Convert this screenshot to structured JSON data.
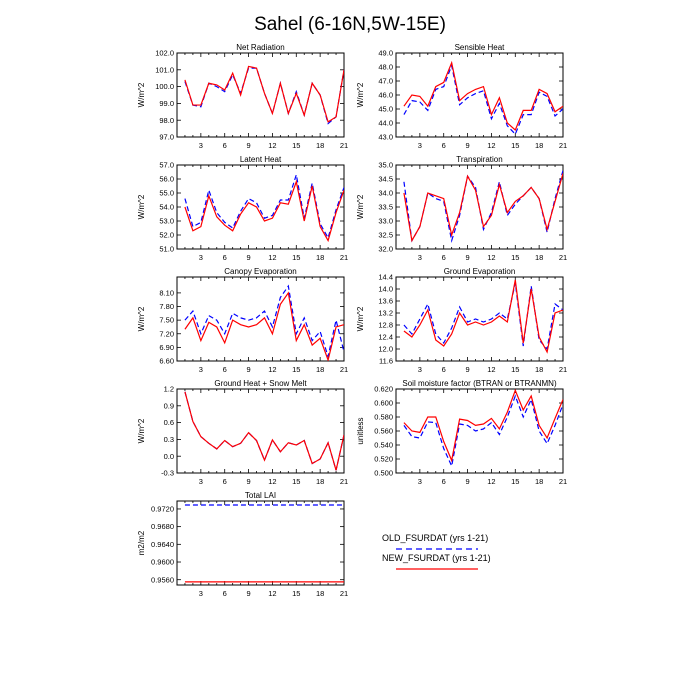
{
  "title": "Sahel (6-16N,5W-15E)",
  "colors": {
    "old": "#0000ff",
    "new": "#ff0000",
    "axis": "#000000"
  },
  "legend": {
    "entries": [
      {
        "label": "OLD_FSURDAT (yrs 1-21)",
        "style": "dashed",
        "color": "#0000ff"
      },
      {
        "label": "NEW_FSURDAT (yrs 1-21)",
        "style": "solid",
        "color": "#ff0000"
      }
    ]
  },
  "chart_data": [
    {
      "type": "line",
      "title": "Net Radiation",
      "ylabel": "W/m^2",
      "xlim": [
        0,
        21
      ],
      "ylim": [
        97.0,
        102.0
      ],
      "xticks": [
        "3",
        "6",
        "9",
        "12",
        "15",
        "18",
        "21"
      ],
      "yticks": [
        "97.0",
        "98.0",
        "99.0",
        "100.0",
        "101.0",
        "102.0"
      ],
      "x": [
        1,
        2,
        3,
        4,
        5,
        6,
        7,
        8,
        9,
        10,
        11,
        12,
        13,
        14,
        15,
        16,
        17,
        18,
        19,
        20,
        21
      ],
      "series": [
        {
          "name": "OLD_FSURDAT (yrs 1-21)",
          "values": [
            100.3,
            98.9,
            98.8,
            100.2,
            100.0,
            99.7,
            100.7,
            99.6,
            101.1,
            101.1,
            99.6,
            98.4,
            100.2,
            98.4,
            99.7,
            98.3,
            100.2,
            99.5,
            97.8,
            98.2,
            101.0
          ]
        },
        {
          "name": "NEW_FSURDAT (yrs 1-21)",
          "values": [
            100.4,
            98.9,
            98.9,
            100.2,
            100.1,
            99.8,
            100.8,
            99.5,
            101.2,
            101.1,
            99.6,
            98.4,
            100.2,
            98.4,
            99.6,
            98.3,
            100.2,
            99.5,
            97.9,
            98.2,
            101.0
          ]
        }
      ]
    },
    {
      "type": "line",
      "title": "Sensible Heat",
      "ylabel": "W/m^2",
      "xlim": [
        0,
        21
      ],
      "ylim": [
        43.0,
        49.0
      ],
      "xticks": [
        "3",
        "6",
        "9",
        "12",
        "15",
        "18",
        "21"
      ],
      "yticks": [
        "43.0",
        "44.0",
        "45.0",
        "46.0",
        "47.0",
        "48.0",
        "49.0"
      ],
      "x": [
        1,
        2,
        3,
        4,
        5,
        6,
        7,
        8,
        9,
        10,
        11,
        12,
        13,
        14,
        15,
        16,
        17,
        18,
        19,
        20,
        21
      ],
      "series": [
        {
          "name": "OLD_FSURDAT (yrs 1-21)",
          "values": [
            44.6,
            45.6,
            45.5,
            44.9,
            46.4,
            46.6,
            48.1,
            45.3,
            45.8,
            46.1,
            46.3,
            44.3,
            45.4,
            43.8,
            43.2,
            44.6,
            44.6,
            46.2,
            45.9,
            44.5,
            45.0
          ]
        },
        {
          "name": "NEW_FSURDAT (yrs 1-21)",
          "values": [
            45.2,
            46.0,
            45.9,
            45.2,
            46.6,
            46.9,
            48.3,
            45.6,
            46.1,
            46.4,
            46.6,
            44.6,
            45.8,
            44.0,
            43.5,
            44.9,
            44.9,
            46.4,
            46.1,
            44.8,
            45.2
          ]
        }
      ]
    },
    {
      "type": "line",
      "title": "Latent Heat",
      "ylabel": "W/m^2",
      "xlim": [
        0,
        21
      ],
      "ylim": [
        51.0,
        57.0
      ],
      "xticks": [
        "3",
        "6",
        "9",
        "12",
        "15",
        "18",
        "21"
      ],
      "yticks": [
        "51.0",
        "52.0",
        "53.0",
        "54.0",
        "55.0",
        "56.0",
        "57.0"
      ],
      "x": [
        1,
        2,
        3,
        4,
        5,
        6,
        7,
        8,
        9,
        10,
        11,
        12,
        13,
        14,
        15,
        16,
        17,
        18,
        19,
        20,
        21
      ],
      "series": [
        {
          "name": "OLD_FSURDAT (yrs 1-21)",
          "values": [
            54.6,
            52.6,
            52.9,
            55.2,
            53.6,
            52.9,
            52.5,
            53.7,
            54.6,
            54.3,
            53.2,
            53.4,
            54.5,
            54.5,
            56.3,
            53.2,
            55.7,
            52.8,
            51.8,
            53.8,
            55.4
          ]
        },
        {
          "name": "NEW_FSURDAT (yrs 1-21)",
          "values": [
            54.0,
            52.3,
            52.6,
            54.8,
            53.3,
            52.7,
            52.3,
            53.5,
            54.3,
            54.0,
            53.0,
            53.2,
            54.3,
            54.2,
            55.8,
            53.0,
            55.5,
            52.6,
            51.6,
            53.6,
            55.2
          ]
        }
      ]
    },
    {
      "type": "line",
      "title": "Transpiration",
      "ylabel": "W/m^2",
      "xlim": [
        0,
        21
      ],
      "ylim": [
        32.0,
        35.0
      ],
      "xticks": [
        "3",
        "6",
        "9",
        "12",
        "15",
        "18",
        "21"
      ],
      "yticks": [
        "32.0",
        "32.5",
        "33.0",
        "33.5",
        "34.0",
        "34.5",
        "35.0"
      ],
      "x": [
        1,
        2,
        3,
        4,
        5,
        6,
        7,
        8,
        9,
        10,
        11,
        12,
        13,
        14,
        15,
        16,
        17,
        18,
        19,
        20,
        21
      ],
      "series": [
        {
          "name": "OLD_FSURDAT (yrs 1-21)",
          "values": [
            34.4,
            32.3,
            32.8,
            34.0,
            33.8,
            33.7,
            32.3,
            33.2,
            34.6,
            34.2,
            32.7,
            33.3,
            34.4,
            33.2,
            33.6,
            33.9,
            34.2,
            33.8,
            32.6,
            33.8,
            34.8
          ]
        },
        {
          "name": "NEW_FSURDAT (yrs 1-21)",
          "values": [
            34.0,
            32.3,
            32.8,
            34.0,
            33.9,
            33.8,
            32.5,
            33.3,
            34.6,
            34.1,
            32.8,
            33.2,
            34.3,
            33.3,
            33.7,
            33.9,
            34.2,
            33.8,
            32.7,
            33.7,
            34.7
          ]
        }
      ]
    },
    {
      "type": "line",
      "title": "Canopy Evaporation",
      "ylabel": "W/m^2",
      "xlim": [
        0,
        21
      ],
      "ylim": [
        6.6,
        8.45
      ],
      "xticks": [
        "3",
        "6",
        "9",
        "12",
        "15",
        "18",
        "21"
      ],
      "yticks": [
        "6.60",
        "6.90",
        "7.20",
        "7.50",
        "7.80",
        "8.10"
      ],
      "x": [
        1,
        2,
        3,
        4,
        5,
        6,
        7,
        8,
        9,
        10,
        11,
        12,
        13,
        14,
        15,
        16,
        17,
        18,
        19,
        20,
        21
      ],
      "series": [
        {
          "name": "OLD_FSURDAT (yrs 1-21)",
          "values": [
            7.5,
            7.7,
            7.2,
            7.6,
            7.5,
            7.2,
            7.65,
            7.55,
            7.5,
            7.55,
            7.7,
            7.35,
            8.0,
            8.25,
            7.2,
            7.55,
            7.05,
            7.25,
            6.7,
            7.5,
            6.8
          ]
        },
        {
          "name": "NEW_FSURDAT (yrs 1-21)",
          "values": [
            7.3,
            7.55,
            7.05,
            7.45,
            7.35,
            7.0,
            7.5,
            7.4,
            7.35,
            7.4,
            7.55,
            7.2,
            7.85,
            8.1,
            7.05,
            7.4,
            6.95,
            7.1,
            6.62,
            7.35,
            7.4
          ]
        }
      ]
    },
    {
      "type": "line",
      "title": "Ground Evaporation",
      "ylabel": "W/m^2",
      "xlim": [
        0,
        21
      ],
      "ylim": [
        11.6,
        14.4
      ],
      "xticks": [
        "3",
        "6",
        "9",
        "12",
        "15",
        "18",
        "21"
      ],
      "yticks": [
        "11.6",
        "12.0",
        "12.4",
        "12.8",
        "13.2",
        "13.6",
        "14.0",
        "14.4"
      ],
      "x": [
        1,
        2,
        3,
        4,
        5,
        6,
        7,
        8,
        9,
        10,
        11,
        12,
        13,
        14,
        15,
        16,
        17,
        18,
        19,
        20,
        21
      ],
      "series": [
        {
          "name": "OLD_FSURDAT (yrs 1-21)",
          "values": [
            12.8,
            12.5,
            13.0,
            13.5,
            12.5,
            12.2,
            12.7,
            13.4,
            12.9,
            13.0,
            12.9,
            13.0,
            13.2,
            13.0,
            14.2,
            12.1,
            14.1,
            12.3,
            12.0,
            13.5,
            13.3
          ]
        },
        {
          "name": "NEW_FSURDAT (yrs 1-21)",
          "values": [
            12.6,
            12.4,
            12.8,
            13.3,
            12.3,
            12.1,
            12.5,
            13.2,
            12.8,
            12.9,
            12.8,
            12.9,
            13.1,
            12.9,
            14.3,
            12.2,
            14.0,
            12.4,
            11.9,
            13.2,
            13.3
          ]
        }
      ]
    },
    {
      "type": "line",
      "title": "Ground Heat + Snow Melt",
      "ylabel": "W/m^2",
      "xlim": [
        0,
        21
      ],
      "ylim": [
        -0.3,
        1.2
      ],
      "xticks": [
        "3",
        "6",
        "9",
        "12",
        "15",
        "18",
        "21"
      ],
      "yticks": [
        "-0.3",
        "0.0",
        "0.3",
        "0.6",
        "0.9",
        "1.2"
      ],
      "x": [
        1,
        2,
        3,
        4,
        5,
        6,
        7,
        8,
        9,
        10,
        11,
        12,
        13,
        14,
        15,
        16,
        17,
        18,
        19,
        20,
        21
      ],
      "series": [
        {
          "name": "OLD_FSURDAT (yrs 1-21)",
          "values": [
            1.15,
            0.62,
            0.35,
            0.23,
            0.13,
            0.28,
            0.17,
            0.23,
            0.42,
            0.28,
            -0.07,
            0.29,
            0.08,
            0.24,
            0.2,
            0.28,
            -0.13,
            -0.05,
            0.24,
            -0.25,
            0.38
          ]
        },
        {
          "name": "NEW_FSURDAT (yrs 1-21)",
          "values": [
            1.15,
            0.62,
            0.35,
            0.23,
            0.13,
            0.28,
            0.17,
            0.23,
            0.42,
            0.28,
            -0.07,
            0.29,
            0.08,
            0.24,
            0.2,
            0.28,
            -0.13,
            -0.05,
            0.24,
            -0.25,
            0.38
          ]
        }
      ]
    },
    {
      "type": "line",
      "title": "Soil moisture factor (BTRAN or BTRANMN)",
      "ylabel": "unitless",
      "xlim": [
        0,
        21
      ],
      "ylim": [
        0.5,
        0.62
      ],
      "xticks": [
        "3",
        "6",
        "9",
        "12",
        "15",
        "18",
        "21"
      ],
      "yticks": [
        "0.500",
        "0.520",
        "0.540",
        "0.560",
        "0.580",
        "0.600",
        "0.620"
      ],
      "x": [
        1,
        2,
        3,
        4,
        5,
        6,
        7,
        8,
        9,
        10,
        11,
        12,
        13,
        14,
        15,
        16,
        17,
        18,
        19,
        20,
        21
      ],
      "series": [
        {
          "name": "OLD_FSURDAT (yrs 1-21)",
          "values": [
            0.568,
            0.552,
            0.55,
            0.573,
            0.572,
            0.535,
            0.51,
            0.57,
            0.568,
            0.56,
            0.563,
            0.572,
            0.555,
            0.58,
            0.61,
            0.58,
            0.605,
            0.56,
            0.542,
            0.568,
            0.598
          ]
        },
        {
          "name": "NEW_FSURDAT (yrs 1-21)",
          "values": [
            0.572,
            0.56,
            0.558,
            0.58,
            0.58,
            0.545,
            0.518,
            0.577,
            0.575,
            0.568,
            0.57,
            0.578,
            0.563,
            0.587,
            0.618,
            0.59,
            0.61,
            0.568,
            0.55,
            0.578,
            0.605
          ]
        }
      ]
    },
    {
      "type": "line",
      "title": "Total LAI",
      "ylabel": "m2/m2",
      "xlim": [
        0,
        21
      ],
      "ylim": [
        0.9548,
        0.9738
      ],
      "xticks": [
        "3",
        "6",
        "9",
        "12",
        "15",
        "18",
        "21"
      ],
      "yticks": [
        "0.9560",
        "0.9600",
        "0.9640",
        "0.9680",
        "0.9720"
      ],
      "x": [
        1,
        2,
        3,
        4,
        5,
        6,
        7,
        8,
        9,
        10,
        11,
        12,
        13,
        14,
        15,
        16,
        17,
        18,
        19,
        20,
        21
      ],
      "series": [
        {
          "name": "OLD_FSURDAT (yrs 1-21)",
          "values": [
            0.9729,
            0.9729,
            0.9729,
            0.9729,
            0.9729,
            0.9729,
            0.9729,
            0.9729,
            0.9729,
            0.9729,
            0.9729,
            0.9729,
            0.9729,
            0.9729,
            0.9729,
            0.9729,
            0.9729,
            0.9729,
            0.9729,
            0.9729,
            0.9729
          ]
        },
        {
          "name": "NEW_FSURDAT (yrs 1-21)",
          "values": [
            0.9555,
            0.9555,
            0.9555,
            0.9555,
            0.9555,
            0.9555,
            0.9555,
            0.9555,
            0.9555,
            0.9555,
            0.9555,
            0.9555,
            0.9555,
            0.9555,
            0.9555,
            0.9555,
            0.9555,
            0.9555,
            0.9555,
            0.9555,
            0.9555
          ]
        }
      ]
    }
  ]
}
